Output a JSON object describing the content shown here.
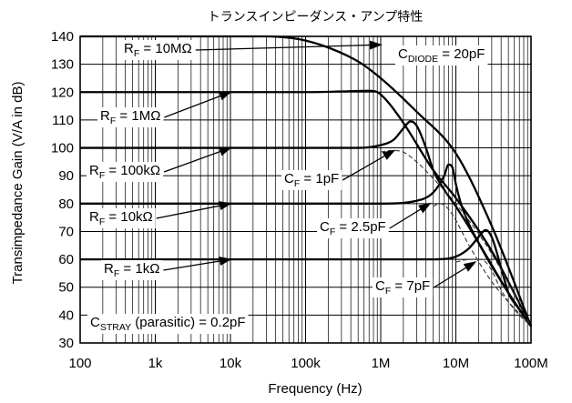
{
  "chart_data": {
    "type": "line",
    "title": "トランスインピーダンス・アンプ特性",
    "xlabel": "Frequency (Hz)",
    "ylabel": "Transimpedance Gain (V/A in dB)",
    "x_scale": "log",
    "xlim": [
      100,
      100000000
    ],
    "ylim": [
      30,
      140
    ],
    "x_ticks": [
      100,
      1000,
      10000,
      100000,
      1000000,
      10000000,
      100000000
    ],
    "x_tick_labels": [
      "100",
      "1k",
      "10k",
      "100k",
      "1M",
      "10M",
      "100M"
    ],
    "y_ticks": [
      30,
      40,
      50,
      60,
      70,
      80,
      90,
      100,
      110,
      120,
      130,
      140
    ],
    "y_tick_labels": [
      "30",
      "40",
      "50",
      "60",
      "70",
      "80",
      "90",
      "100",
      "110",
      "120",
      "130",
      "140"
    ],
    "grid": true,
    "series": [
      {
        "name": "R_F = 10MΩ",
        "style": "solid",
        "x": [
          100,
          10000,
          30000,
          60000,
          100000,
          200000,
          500000,
          1000000,
          3000000,
          10000000,
          30000000,
          100000000
        ],
        "y": [
          140,
          140,
          140,
          139.5,
          138.5,
          136,
          131,
          125,
          113,
          98,
          72,
          36
        ]
      },
      {
        "name": "R_F = 1MΩ",
        "style": "solid",
        "x": [
          100,
          100000,
          500000,
          700000,
          900000,
          1200000,
          2000000,
          5000000,
          10000000,
          30000000,
          100000000
        ],
        "y": [
          120,
          120,
          120.4,
          120.5,
          120,
          117,
          109,
          92,
          82,
          63,
          36
        ]
      },
      {
        "name": "R_F = 100kΩ",
        "style": "solid",
        "x": [
          100,
          500000,
          1000000,
          1500000,
          2000000,
          2500000,
          3000000,
          4000000,
          5000000,
          7000000,
          10000000,
          20000000,
          50000000,
          100000000
        ],
        "y": [
          100,
          100,
          101,
          103,
          107,
          109.5,
          108,
          100,
          92,
          85,
          79,
          66,
          48,
          36
        ]
      },
      {
        "name": "R_F = 10kΩ",
        "style": "solid",
        "x": [
          100,
          1000000,
          3000000,
          5000000,
          7000000,
          8000000,
          9000000,
          10000000,
          12000000,
          20000000,
          50000000,
          100000000
        ],
        "y": [
          80,
          80,
          81,
          84,
          90,
          94,
          93,
          87,
          79,
          66,
          48,
          36
        ]
      },
      {
        "name": "R_F = 1kΩ",
        "style": "solid",
        "x": [
          100,
          5000000,
          10000000,
          15000000,
          20000000,
          25000000,
          30000000,
          40000000,
          50000000,
          70000000,
          100000000
        ],
        "y": [
          60,
          60,
          61,
          64,
          68,
          70.5,
          68,
          57,
          48,
          42,
          36
        ]
      },
      {
        "name": "C_F = 1pF",
        "style": "dashed",
        "x": [
          1000000,
          1300000,
          1600000,
          2000000,
          3000000,
          5000000,
          10000000,
          30000000,
          100000000
        ],
        "y": [
          98.5,
          99,
          99,
          98.5,
          95,
          89,
          80,
          62,
          36
        ]
      },
      {
        "name": "C_F = 2.5pF",
        "style": "dashed",
        "x": [
          5000000,
          6000000,
          7000000,
          8000000,
          10000000,
          15000000,
          30000000,
          100000000
        ],
        "y": [
          79,
          80,
          79.5,
          78,
          74,
          65,
          52,
          36
        ]
      },
      {
        "name": "C_F = 7pF",
        "style": "dashed",
        "x": [
          10000000,
          15000000,
          20000000,
          25000000,
          30000000,
          40000000,
          60000000,
          100000000
        ],
        "y": [
          59,
          60,
          60,
          59,
          56,
          49,
          42,
          36
        ]
      }
    ],
    "annotations": [
      {
        "id": "rf10m",
        "main": "R",
        "sub": "F",
        "rest": " = 10MΩ",
        "target_x": 1000000,
        "target_y": 137
      },
      {
        "id": "rf1m",
        "main": "R",
        "sub": "F",
        "rest": " = 1MΩ",
        "target_x": 10000,
        "target_y": 120
      },
      {
        "id": "rf100k",
        "main": "R",
        "sub": "F",
        "rest": " = 100kΩ",
        "target_x": 10000,
        "target_y": 100
      },
      {
        "id": "rf10k",
        "main": "R",
        "sub": "F",
        "rest": " = 10kΩ",
        "target_x": 10000,
        "target_y": 80
      },
      {
        "id": "rf1k",
        "main": "R",
        "sub": "F",
        "rest": " = 1kΩ",
        "target_x": 10000,
        "target_y": 60
      },
      {
        "id": "cf1p",
        "main": "C",
        "sub": "F",
        "rest": " = 1pF",
        "target_x": 1500000,
        "target_y": 99
      },
      {
        "id": "cf25p",
        "main": "C",
        "sub": "F",
        "rest": " = 2.5pF",
        "target_x": 4500000,
        "target_y": 80
      },
      {
        "id": "cf7p",
        "main": "C",
        "sub": "F",
        "rest": " = 7pF",
        "target_x": 18000000,
        "target_y": 59
      },
      {
        "id": "cdiode",
        "main": "C",
        "sub": "DIODE",
        "rest": " = 20pF"
      },
      {
        "id": "cstray",
        "main": "C",
        "sub": "STRAY",
        "rest": " (parasitic) = 0.2pF"
      }
    ]
  }
}
